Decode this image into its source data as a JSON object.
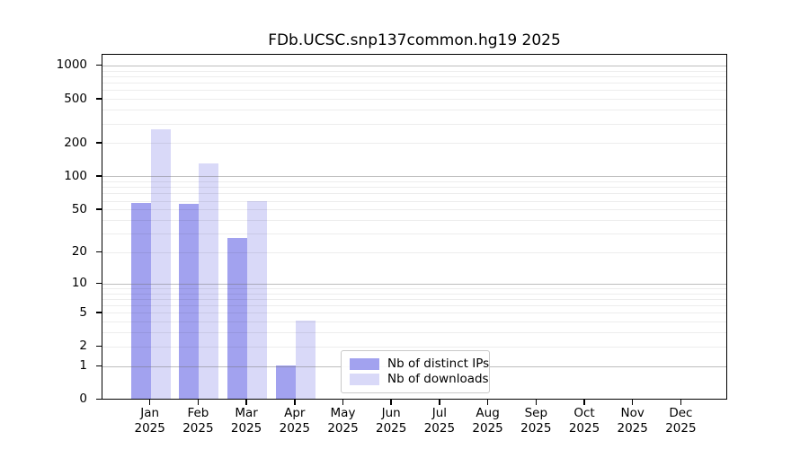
{
  "figure": {
    "title": "FDb.UCSC.snp137common.hg19 2025"
  },
  "chart_data": {
    "type": "bar",
    "title": "FDb.UCSC.snp137common.hg19 2025",
    "categories": [
      "Jan",
      "Feb",
      "Mar",
      "Apr",
      "May",
      "Jun",
      "Jul",
      "Aug",
      "Sep",
      "Oct",
      "Nov",
      "Dec"
    ],
    "year_label": "2025",
    "series": [
      {
        "name": "Nb of distinct IPs",
        "color": "#a2a2ef",
        "values": [
          56,
          55,
          27,
          1,
          0,
          0,
          0,
          0,
          0,
          0,
          0,
          0
        ]
      },
      {
        "name": "Nb of downloads",
        "color": "#d9d9f8",
        "values": [
          260,
          130,
          58,
          4,
          0,
          0,
          0,
          0,
          0,
          0,
          0,
          0
        ]
      }
    ],
    "xlabel": "",
    "ylabel": "",
    "y_axis": {
      "scale": "log10(value+1)",
      "tick_values": [
        0,
        1,
        2,
        5,
        10,
        20,
        50,
        100,
        200,
        500,
        1000
      ],
      "major_gridlines": [
        1,
        10,
        100,
        1000
      ],
      "minor_gridlines": [
        2,
        3,
        4,
        5,
        6,
        7,
        8,
        9,
        20,
        30,
        40,
        50,
        60,
        70,
        80,
        90,
        200,
        300,
        400,
        500,
        600,
        700,
        800,
        900
      ],
      "ylim": [
        0,
        1280
      ]
    },
    "grid": true,
    "legend_position": "lower center"
  },
  "legend": {
    "entries": [
      {
        "label": "Nb of distinct IPs"
      },
      {
        "label": "Nb of downloads"
      }
    ]
  }
}
